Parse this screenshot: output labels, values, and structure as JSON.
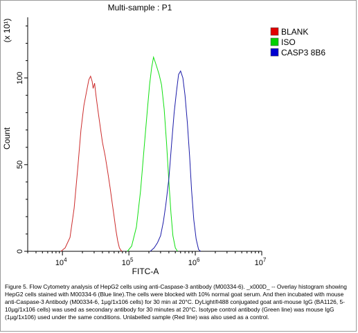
{
  "chart_data": {
    "type": "line",
    "title": "Multi-sample : P1",
    "xlabel": "FITC-A",
    "ylabel": "Count",
    "y_multiplier": "(x 10¹)",
    "x_scale": "log",
    "xlim": [
      3000,
      10000000
    ],
    "ylim": [
      0,
      135
    ],
    "x_ticks": [
      {
        "value": 10000,
        "base": "10",
        "exp": "4"
      },
      {
        "value": 100000,
        "base": "10",
        "exp": "5"
      },
      {
        "value": 1000000,
        "base": "10",
        "exp": "6"
      },
      {
        "value": 10000000,
        "base": "10",
        "exp": "7"
      }
    ],
    "y_ticks": [
      0,
      50,
      100
    ],
    "grid": false,
    "legend_position": "right",
    "series": [
      {
        "name": "BLANK",
        "color": "#cc2b2b",
        "legend_color": "#e00000",
        "x": [
          9500,
          11000,
          13000,
          15000,
          17000,
          19000,
          21000,
          23000,
          25000,
          26500,
          28000,
          29000,
          30500,
          32000,
          34000,
          37000,
          40000,
          44000,
          48000,
          52000,
          56000,
          60000,
          64000,
          68000,
          72000,
          76000,
          79000
        ],
        "y": [
          0,
          2,
          8,
          25,
          48,
          70,
          84,
          92,
          99,
          101,
          98,
          94,
          97,
          90,
          82,
          72,
          63,
          55,
          46,
          37,
          28,
          20,
          12,
          6,
          2,
          0.5,
          0
        ]
      },
      {
        "name": "ISO",
        "color": "#10e010",
        "legend_color": "#00d000",
        "x": [
          95000,
          110000,
          130000,
          150000,
          170000,
          190000,
          205000,
          220000,
          235000,
          250000,
          265000,
          285000,
          310000,
          340000,
          370000,
          400000,
          430000,
          460000,
          500000,
          540000
        ],
        "y": [
          0,
          3,
          14,
          35,
          60,
          82,
          96,
          106,
          112,
          109,
          106,
          102,
          96,
          82,
          62,
          40,
          22,
          9,
          2,
          0
        ]
      },
      {
        "name": "CASP3 8B6",
        "color": "#1a1aa8",
        "legend_color": "#0000d0",
        "x": [
          210000,
          240000,
          270000,
          300000,
          330000,
          360000,
          400000,
          440000,
          480000,
          520000,
          560000,
          600000,
          650000,
          700000,
          760000,
          820000,
          880000,
          950000,
          1030000,
          1120000,
          1200000
        ],
        "y": [
          0,
          2,
          5,
          9,
          17,
          27,
          42,
          62,
          80,
          92,
          102,
          104,
          100,
          90,
          74,
          55,
          35,
          18,
          7,
          1,
          0
        ]
      }
    ]
  },
  "caption": "Figure 5. Flow Cytometry analysis of HepG2 cells using anti-Caspase-3 antibody (M00334-6). _x000D_ -- Overlay histogram showing HepG2 cells stained with M00334-6 (Blue line).The cells were blocked with 10% normal goat serum. And then incubated with mouse anti-Caspase-3 Antibody (M00334-6, 1µg/1x106 cells) for 30 min at 20°C. DyLight®488 conjugated goat anti-mouse IgG (BA1126, 5-10µg/1x106 cells) was used as secondary antibody for 30 minutes at 20°C. Isotype control antibody (Green line) was mouse IgG (1µg/1x106) used under the same conditions. Unlabelled sample (Red line) was also used as a control."
}
